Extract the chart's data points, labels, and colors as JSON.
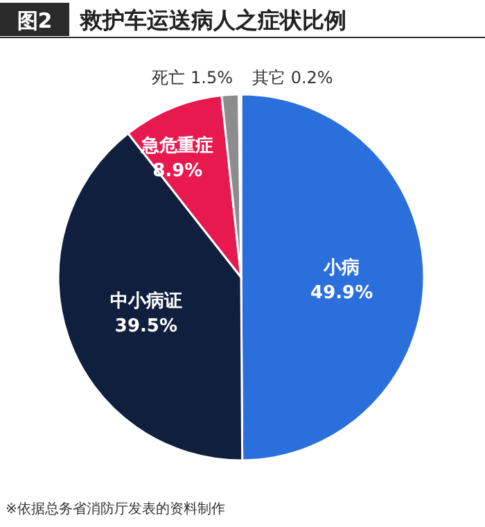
{
  "chart_data": {
    "type": "pie",
    "title": "救护车运送病人之症状比例",
    "categories": [
      "小病",
      "中小病证",
      "急危重症",
      "死亡",
      "其它"
    ],
    "values": [
      49.9,
      39.5,
      8.9,
      1.5,
      0.2
    ],
    "colors": [
      "#2b6fdc",
      "#0f1f3d",
      "#e8194f",
      "#8c8c8c",
      "#e6c200"
    ],
    "value_labels": [
      "49.9%",
      "39.5%",
      "8.9%",
      "1.5%",
      "0.2%"
    ],
    "annotations": [
      "图2",
      "※依据总务省消防厅发表的资料制作"
    ]
  }
}
